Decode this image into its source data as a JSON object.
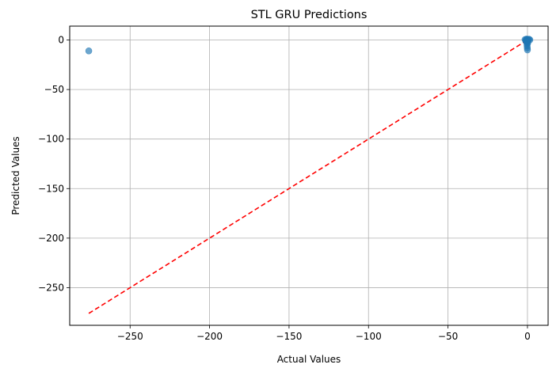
{
  "chart_data": {
    "type": "scatter",
    "title": "STL GRU Predictions",
    "xlabel": "Actual Values",
    "ylabel": "Predicted Values",
    "xlim": [
      -288,
      13
    ],
    "ylim": [
      -288,
      14
    ],
    "xticks": [
      -250,
      -200,
      -150,
      -100,
      -50,
      0
    ],
    "yticks": [
      0,
      -50,
      -100,
      -150,
      -200,
      -250
    ],
    "grid": true,
    "point_color": "#1f77b4",
    "point_alpha": 0.65,
    "points": [
      {
        "x": -276,
        "y": -11
      },
      {
        "x": -1.5,
        "y": 0.5
      },
      {
        "x": -1,
        "y": 0
      },
      {
        "x": -0.5,
        "y": 1
      },
      {
        "x": 0,
        "y": 0.5
      },
      {
        "x": 0.5,
        "y": 0
      },
      {
        "x": 1,
        "y": 0.8
      },
      {
        "x": 1.5,
        "y": 0.2
      },
      {
        "x": -1,
        "y": -1
      },
      {
        "x": 0,
        "y": -2
      },
      {
        "x": -0.3,
        "y": -4
      },
      {
        "x": -0.2,
        "y": -6
      },
      {
        "x": -0.1,
        "y": -8
      },
      {
        "x": 0,
        "y": -10
      },
      {
        "x": 0.2,
        "y": -3
      },
      {
        "x": -0.5,
        "y": -1.5
      }
    ],
    "reference_line": {
      "color": "#ff0000",
      "style": "dashed",
      "from": [
        -276,
        -276
      ],
      "to": [
        1.5,
        1.5
      ]
    }
  }
}
